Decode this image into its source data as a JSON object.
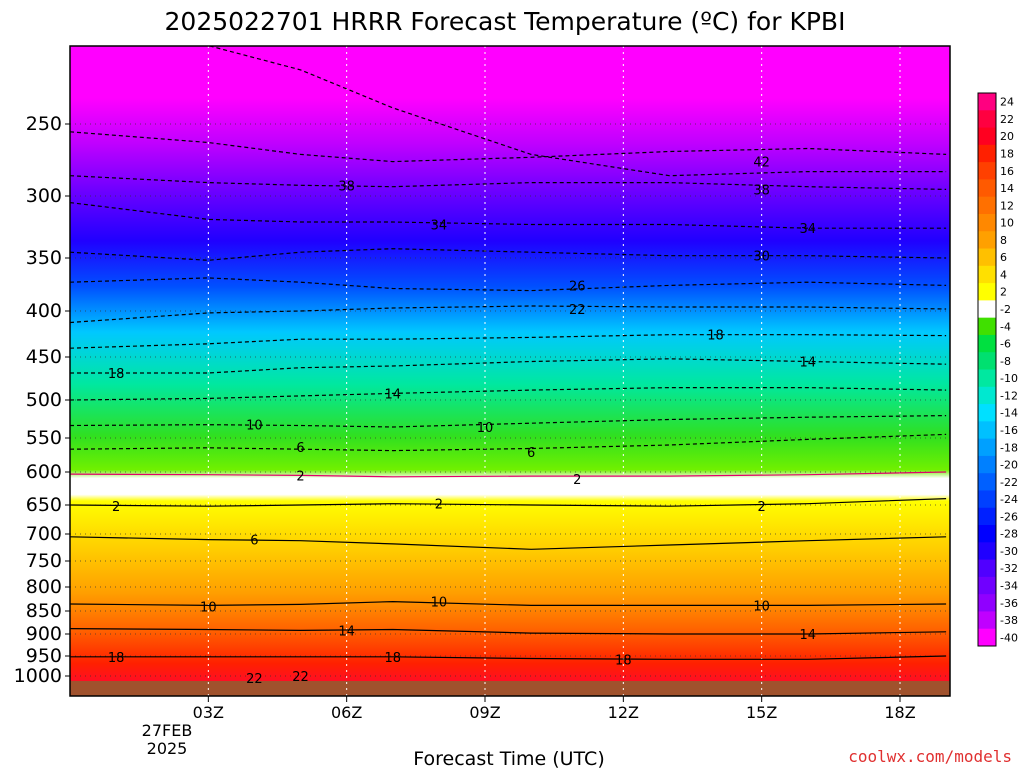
{
  "chart_data": {
    "type": "heatmap",
    "title": "2025022701 HRRR Forecast Temperature (ºC) for KPBI",
    "xlabel": "Forecast Time (UTC)",
    "ylabel": "",
    "credit": "coolwx.com/models",
    "x_ticks": [
      "03Z",
      "06Z",
      "09Z",
      "12Z",
      "15Z",
      "18Z"
    ],
    "x_date_label": [
      "27FEB",
      "2025"
    ],
    "y_ticks": [
      "250",
      "300",
      "350",
      "400",
      "450",
      "500",
      "550",
      "600",
      "650",
      "700",
      "750",
      "800",
      "850",
      "900",
      "950",
      "1000"
    ],
    "colorbar_labels": [
      "24",
      "22",
      "20",
      "18",
      "16",
      "14",
      "12",
      "10",
      "8",
      "6",
      "4",
      "2",
      "-2",
      "-4",
      "-6",
      "-8",
      "-10",
      "-12",
      "-14",
      "-16",
      "-18",
      "-20",
      "-22",
      "-24",
      "-26",
      "-28",
      "-30",
      "-32",
      "-34",
      "-36",
      "-38",
      "-40"
    ],
    "colorbar_colors": [
      "#ff0080",
      "#ff0040",
      "#ff0020",
      "#ff2000",
      "#ff4000",
      "#ff5a00",
      "#ff7000",
      "#ff8800",
      "#ffa000",
      "#ffc000",
      "#ffe000",
      "#ffff00",
      "#ffffff",
      "#40e000",
      "#00e040",
      "#00e070",
      "#00e8a0",
      "#00e8d0",
      "#00e0ff",
      "#00c0ff",
      "#00a0ff",
      "#0080ff",
      "#0060ff",
      "#0040ff",
      "#0020ff",
      "#0000ff",
      "#2000ff",
      "#5000ff",
      "#7000ff",
      "#9000ff",
      "#c000ff",
      "#ff00ff"
    ],
    "contour_labels": [
      {
        "value": "42",
        "time": "15Z",
        "pressure": 275
      },
      {
        "value": "38",
        "time": "06Z",
        "pressure": 292
      },
      {
        "value": "38",
        "time": "15Z",
        "pressure": 295
      },
      {
        "value": "34",
        "time": "08Z",
        "pressure": 322
      },
      {
        "value": "34",
        "time": "16Z",
        "pressure": 325
      },
      {
        "value": "30",
        "time": "15Z",
        "pressure": 348
      },
      {
        "value": "26",
        "time": "11Z",
        "pressure": 375
      },
      {
        "value": "22",
        "time": "11Z",
        "pressure": 398
      },
      {
        "value": "18",
        "time": "14Z",
        "pressure": 425
      },
      {
        "value": "18",
        "time": "01Z",
        "pressure": 468
      },
      {
        "value": "14",
        "time": "16Z",
        "pressure": 455
      },
      {
        "value": "14",
        "time": "07Z",
        "pressure": 492
      },
      {
        "value": "10",
        "time": "04Z",
        "pressure": 532
      },
      {
        "value": "10",
        "time": "09Z",
        "pressure": 535
      },
      {
        "value": "6",
        "time": "05Z",
        "pressure": 563
      },
      {
        "value": "6",
        "time": "10Z",
        "pressure": 570
      },
      {
        "value": "2",
        "time": "05Z",
        "pressure": 605
      },
      {
        "value": "2",
        "time": "11Z",
        "pressure": 610
      },
      {
        "value": "2",
        "time": "01Z",
        "pressure": 652
      },
      {
        "value": "2",
        "time": "08Z",
        "pressure": 648
      },
      {
        "value": "2",
        "time": "15Z",
        "pressure": 652
      },
      {
        "value": "6",
        "time": "04Z",
        "pressure": 710
      },
      {
        "value": "10",
        "time": "03Z",
        "pressure": 840
      },
      {
        "value": "10",
        "time": "08Z",
        "pressure": 830
      },
      {
        "value": "10",
        "time": "15Z",
        "pressure": 838
      },
      {
        "value": "14",
        "time": "06Z",
        "pressure": 892
      },
      {
        "value": "14",
        "time": "16Z",
        "pressure": 900
      },
      {
        "value": "18",
        "time": "01Z",
        "pressure": 952
      },
      {
        "value": "18",
        "time": "07Z",
        "pressure": 952
      },
      {
        "value": "18",
        "time": "12Z",
        "pressure": 958
      },
      {
        "value": "22",
        "time": "04Z",
        "pressure": 1005
      },
      {
        "value": "22",
        "time": "05Z",
        "pressure": 1000
      }
    ]
  }
}
